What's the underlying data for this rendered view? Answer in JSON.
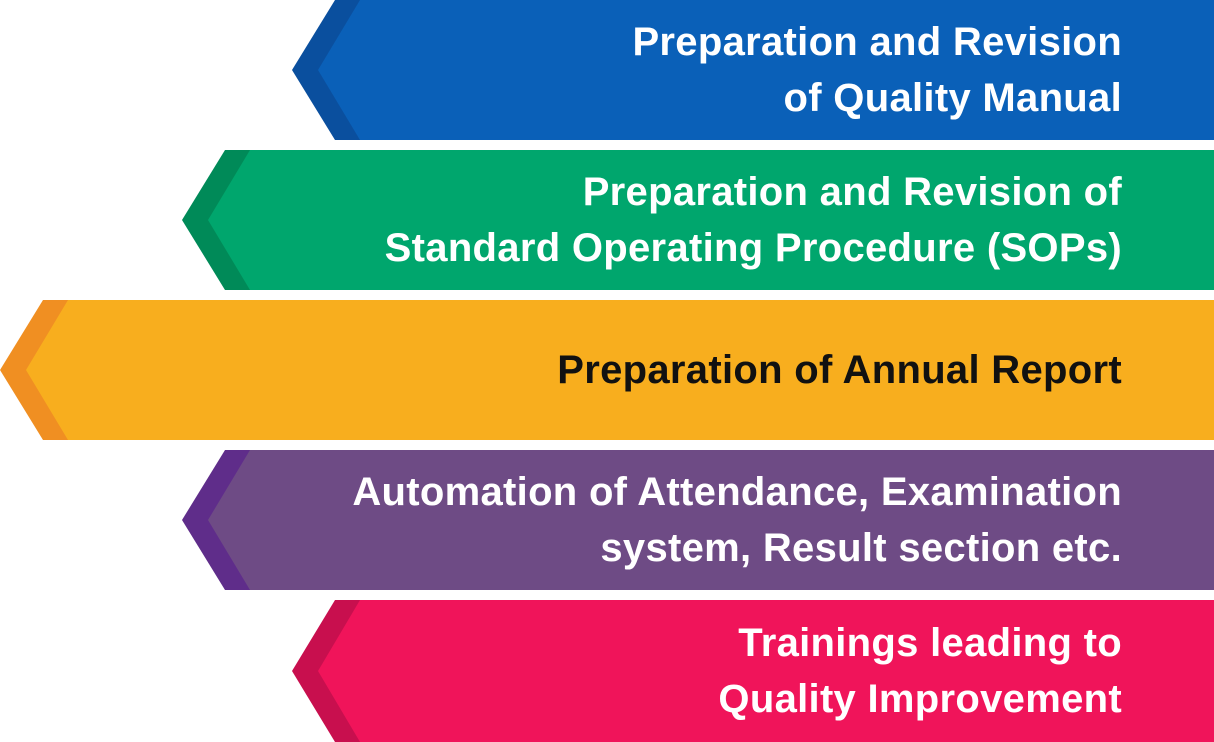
{
  "banners": [
    {
      "id": "quality-manual",
      "lines": [
        "Preparation and Revision",
        "of Quality Manual"
      ],
      "color": "#0a60b8",
      "dark_color": "#0a4f9e",
      "text_color": "#ffffff"
    },
    {
      "id": "sops",
      "lines": [
        "Preparation and Revision of",
        "Standard Operating Procedure (SOPs)"
      ],
      "color": "#00a66d",
      "dark_color": "#008a58",
      "text_color": "#ffffff"
    },
    {
      "id": "annual-report",
      "lines": [
        "Preparation of Annual Report"
      ],
      "color": "#f8ae1e",
      "dark_color": "#f08f22",
      "text_color": "#111111"
    },
    {
      "id": "automation",
      "lines": [
        "Automation of Attendance, Examination",
        "system, Result section etc."
      ],
      "color": "#6e4b85",
      "dark_color": "#5f2d8a",
      "text_color": "#ffffff"
    },
    {
      "id": "trainings",
      "lines": [
        "Trainings leading to",
        "Quality Improvement"
      ],
      "color": "#f0145a",
      "dark_color": "#c80f4e",
      "text_color": "#ffffff"
    }
  ]
}
